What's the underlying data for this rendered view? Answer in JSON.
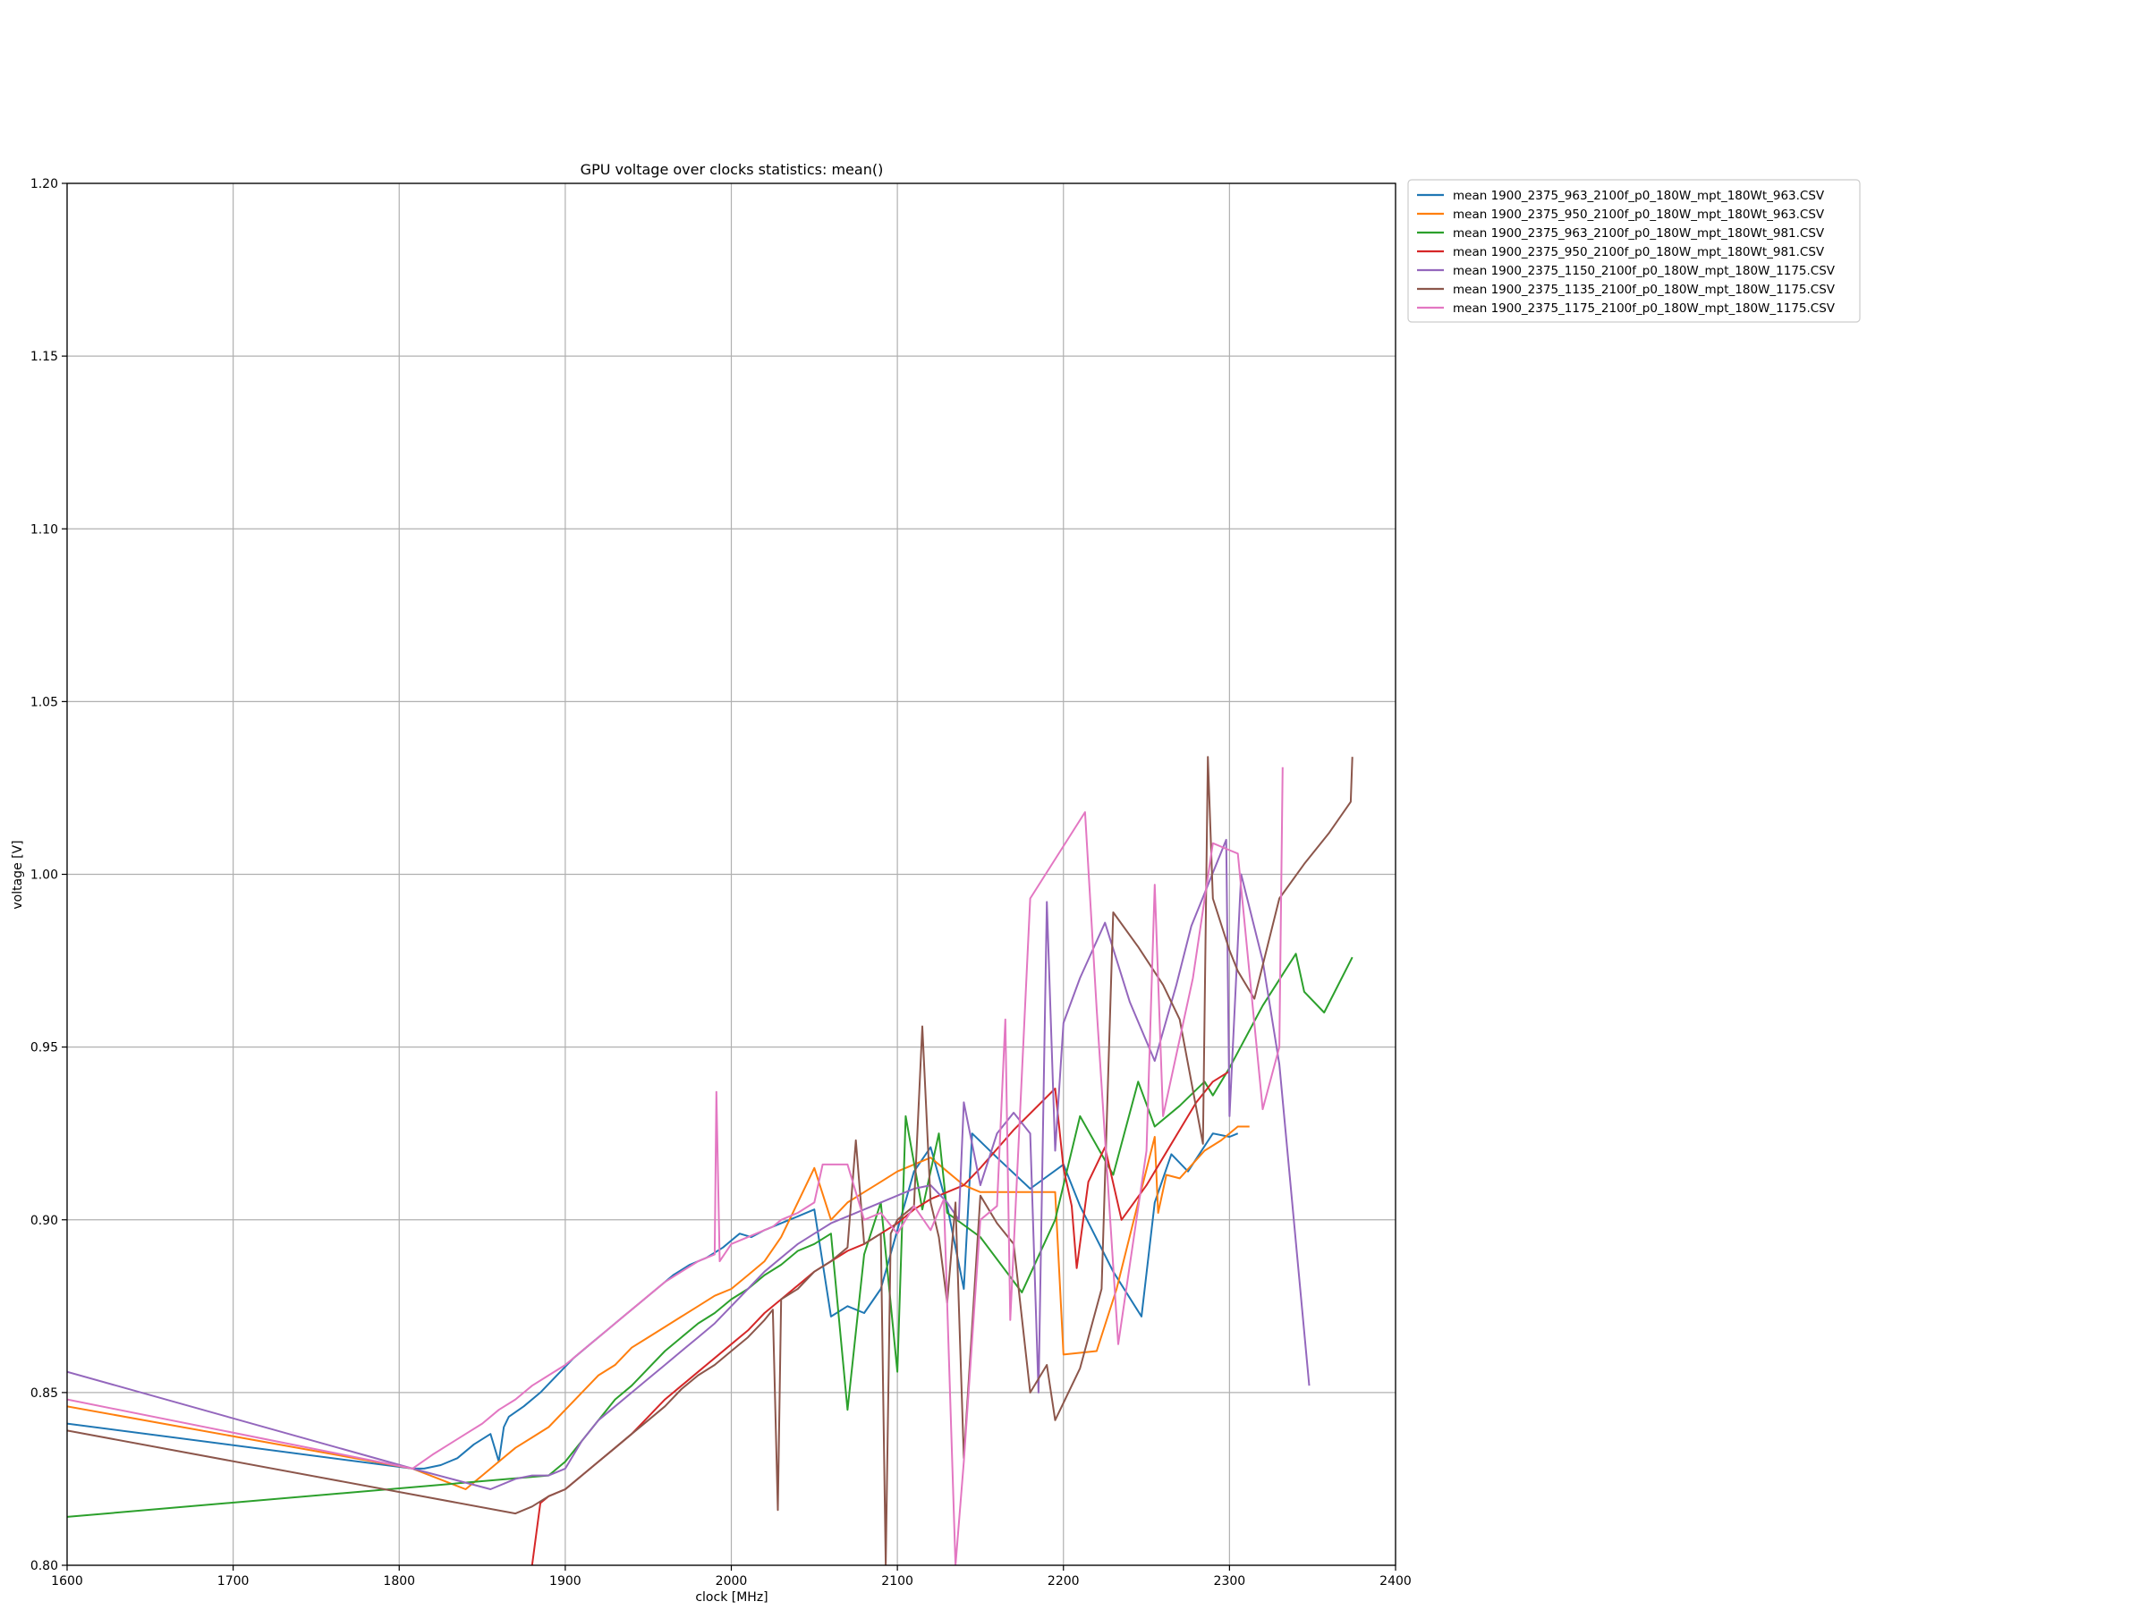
{
  "chart_data": {
    "type": "line",
    "title": "GPU voltage over clocks statistics: mean()",
    "xlabel": "clock [MHz]",
    "ylabel": "voltage [V]",
    "xlim": [
      1600,
      2400
    ],
    "ylim": [
      0.8,
      1.2
    ],
    "xticks": [
      1600,
      1700,
      1800,
      1900,
      2000,
      2100,
      2200,
      2300,
      2400
    ],
    "xtick_labels": [
      "1600",
      "1700",
      "1800",
      "1900",
      "2000",
      "2100",
      "2200",
      "2300",
      "2400"
    ],
    "yticks": [
      0.8,
      0.85,
      0.9,
      0.95,
      1.0,
      1.05,
      1.1,
      1.15,
      1.2
    ],
    "ytick_labels": [
      "0.80",
      "0.85",
      "0.90",
      "0.95",
      "1.00",
      "1.05",
      "1.10",
      "1.15",
      "1.20"
    ],
    "grid": true,
    "legend_position": "outside-top-right",
    "series": [
      {
        "name": "mean 1900_2375_963_2100f_p0_180W_mpt_180Wt_963.CSV",
        "color": "#1f77b4",
        "x": [
          1600,
          1808,
          1815,
          1825,
          1835,
          1845,
          1855,
          1860,
          1863,
          1866,
          1875,
          1885,
          1895,
          1905,
          1915,
          1925,
          1935,
          1945,
          1955,
          1965,
          1975,
          1985,
          1995,
          2000,
          2005,
          2012,
          2020,
          2030,
          2040,
          2050,
          2060,
          2070,
          2080,
          2090,
          2100,
          2110,
          2120,
          2130,
          2140,
          2145,
          2160,
          2180,
          2200,
          2210,
          2230,
          2247,
          2255,
          2265,
          2275,
          2290,
          2300,
          2305
        ],
        "y": [
          0.841,
          0.828,
          0.828,
          0.829,
          0.831,
          0.835,
          0.838,
          0.83,
          0.84,
          0.843,
          0.846,
          0.85,
          0.855,
          0.86,
          0.864,
          0.868,
          0.872,
          0.876,
          0.88,
          0.884,
          0.887,
          0.889,
          0.892,
          0.894,
          0.896,
          0.895,
          0.897,
          0.899,
          0.901,
          0.903,
          0.872,
          0.875,
          0.873,
          0.88,
          0.897,
          0.914,
          0.921,
          0.904,
          0.88,
          0.925,
          0.918,
          0.909,
          0.916,
          0.904,
          0.885,
          0.872,
          0.905,
          0.919,
          0.914,
          0.925,
          0.924,
          0.925
        ]
      },
      {
        "name": "mean 1900_2375_950_2100f_p0_180W_mpt_180Wt_963.CSV",
        "color": "#ff7f0e",
        "x": [
          1600,
          1808,
          1840,
          1850,
          1860,
          1870,
          1880,
          1890,
          1900,
          1910,
          1920,
          1930,
          1940,
          1950,
          1960,
          1970,
          1980,
          1990,
          2000,
          2010,
          2020,
          2030,
          2040,
          2050,
          2060,
          2070,
          2080,
          2090,
          2100,
          2110,
          2120,
          2130,
          2140,
          2150,
          2170,
          2195,
          2200,
          2220,
          2232,
          2245,
          2255,
          2257,
          2262,
          2270,
          2285,
          2295,
          2305,
          2312
        ],
        "y": [
          0.846,
          0.828,
          0.822,
          0.826,
          0.83,
          0.834,
          0.837,
          0.84,
          0.845,
          0.85,
          0.855,
          0.858,
          0.863,
          0.866,
          0.869,
          0.872,
          0.875,
          0.878,
          0.88,
          0.884,
          0.888,
          0.895,
          0.905,
          0.915,
          0.9,
          0.905,
          0.908,
          0.911,
          0.914,
          0.916,
          0.918,
          0.914,
          0.91,
          0.908,
          0.908,
          0.908,
          0.861,
          0.862,
          0.88,
          0.905,
          0.924,
          0.902,
          0.913,
          0.912,
          0.92,
          0.923,
          0.927,
          0.927
        ]
      },
      {
        "name": "mean 1900_2375_963_2100f_p0_180W_mpt_180Wt_981.CSV",
        "color": "#2ca02c",
        "x": [
          1600,
          1890,
          1900,
          1910,
          1920,
          1930,
          1940,
          1950,
          1960,
          1970,
          1980,
          1990,
          2000,
          2010,
          2020,
          2030,
          2040,
          2050,
          2060,
          2070,
          2080,
          2090,
          2100,
          2105,
          2115,
          2125,
          2130,
          2150,
          2175,
          2195,
          2210,
          2230,
          2245,
          2255,
          2270,
          2285,
          2290,
          2300,
          2320,
          2340,
          2345,
          2357,
          2374
        ],
        "y": [
          0.814,
          0.826,
          0.83,
          0.836,
          0.842,
          0.848,
          0.852,
          0.857,
          0.862,
          0.866,
          0.87,
          0.873,
          0.877,
          0.88,
          0.884,
          0.887,
          0.891,
          0.893,
          0.896,
          0.845,
          0.89,
          0.905,
          0.856,
          0.93,
          0.903,
          0.925,
          0.902,
          0.895,
          0.879,
          0.9,
          0.93,
          0.913,
          0.94,
          0.927,
          0.933,
          0.94,
          0.936,
          0.944,
          0.962,
          0.977,
          0.966,
          0.96,
          0.976
        ]
      },
      {
        "name": "mean 1900_2375_950_2100f_p0_180W_mpt_180Wt_981.CSV",
        "color": "#d62728",
        "x": [
          1880,
          1885,
          1890,
          1900,
          1910,
          1920,
          1930,
          1940,
          1950,
          1960,
          1970,
          1980,
          1990,
          2000,
          2010,
          2020,
          2030,
          2040,
          2050,
          2060,
          2070,
          2080,
          2090,
          2100,
          2110,
          2120,
          2130,
          2140,
          2150,
          2170,
          2195,
          2200,
          2205,
          2208,
          2215,
          2225,
          2235,
          2250,
          2265,
          2280,
          2290,
          2300
        ],
        "y": [
          0.8,
          0.818,
          0.82,
          0.822,
          0.826,
          0.83,
          0.834,
          0.838,
          0.843,
          0.848,
          0.852,
          0.856,
          0.86,
          0.864,
          0.868,
          0.873,
          0.877,
          0.881,
          0.885,
          0.888,
          0.891,
          0.893,
          0.896,
          0.899,
          0.903,
          0.906,
          0.908,
          0.91,
          0.915,
          0.926,
          0.938,
          0.915,
          0.904,
          0.886,
          0.911,
          0.921,
          0.9,
          0.91,
          0.922,
          0.934,
          0.94,
          0.943
        ]
      },
      {
        "name": "mean 1900_2375_1150_2100f_p0_180W_mpt_180W_1175.CSV",
        "color": "#9467bd",
        "x": [
          1600,
          1808,
          1855,
          1870,
          1880,
          1890,
          1900,
          1910,
          1920,
          1930,
          1940,
          1950,
          1960,
          1970,
          1980,
          1990,
          2000,
          2010,
          2020,
          2030,
          2040,
          2050,
          2060,
          2070,
          2080,
          2090,
          2100,
          2110,
          2120,
          2130,
          2137,
          2140,
          2150,
          2160,
          2170,
          2180,
          2185,
          2190,
          2195,
          2200,
          2210,
          2225,
          2240,
          2255,
          2268,
          2277,
          2298,
          2300,
          2307,
          2320,
          2330,
          2348
        ],
        "y": [
          0.856,
          0.828,
          0.822,
          0.825,
          0.826,
          0.826,
          0.828,
          0.836,
          0.842,
          0.846,
          0.85,
          0.854,
          0.858,
          0.862,
          0.866,
          0.87,
          0.875,
          0.88,
          0.885,
          0.889,
          0.893,
          0.896,
          0.899,
          0.901,
          0.903,
          0.905,
          0.907,
          0.909,
          0.91,
          0.905,
          0.9,
          0.934,
          0.91,
          0.925,
          0.931,
          0.925,
          0.85,
          0.992,
          0.92,
          0.957,
          0.97,
          0.986,
          0.963,
          0.946,
          0.968,
          0.985,
          1.01,
          0.93,
          1.0,
          0.975,
          0.945,
          0.852
        ]
      },
      {
        "name": "mean 1900_2375_1135_2100f_p0_180W_mpt_180W_1175.CSV",
        "color": "#8c564b",
        "x": [
          1600,
          1870,
          1880,
          1890,
          1900,
          1910,
          1920,
          1930,
          1940,
          1950,
          1960,
          1970,
          1980,
          1990,
          2000,
          2010,
          2020,
          2025,
          2028,
          2030,
          2040,
          2050,
          2060,
          2070,
          2075,
          2080,
          2090,
          2093,
          2096,
          2100,
          2110,
          2115,
          2120,
          2125,
          2130,
          2135,
          2140,
          2150,
          2160,
          2170,
          2180,
          2190,
          2195,
          2210,
          2223,
          2230,
          2245,
          2260,
          2270,
          2284,
          2287,
          2290,
          2300,
          2305,
          2315,
          2330,
          2345,
          2360,
          2373,
          2374
        ],
        "y": [
          0.839,
          0.815,
          0.817,
          0.82,
          0.822,
          0.826,
          0.83,
          0.834,
          0.838,
          0.842,
          0.846,
          0.851,
          0.855,
          0.858,
          0.862,
          0.866,
          0.871,
          0.874,
          0.816,
          0.877,
          0.88,
          0.885,
          0.888,
          0.892,
          0.923,
          0.893,
          0.896,
          0.8,
          0.896,
          0.9,
          0.904,
          0.956,
          0.905,
          0.895,
          0.876,
          0.905,
          0.831,
          0.907,
          0.899,
          0.893,
          0.85,
          0.858,
          0.842,
          0.857,
          0.88,
          0.989,
          0.979,
          0.968,
          0.958,
          0.922,
          1.034,
          0.993,
          0.978,
          0.972,
          0.964,
          0.993,
          1.003,
          1.012,
          1.021,
          1.034
        ]
      },
      {
        "name": "mean 1900_2375_1175_2100f_p0_180W_mpt_180W_1175.CSV",
        "color": "#e377c2",
        "x": [
          1600,
          1808,
          1820,
          1830,
          1840,
          1850,
          1860,
          1870,
          1880,
          1890,
          1900,
          1910,
          1920,
          1930,
          1940,
          1950,
          1960,
          1970,
          1980,
          1990,
          1991,
          1993,
          2000,
          2010,
          2020,
          2025,
          2030,
          2040,
          2050,
          2055,
          2060,
          2070,
          2080,
          2090,
          2100,
          2110,
          2120,
          2128,
          2135,
          2140,
          2150,
          2160,
          2165,
          2168,
          2180,
          2213,
          2220,
          2233,
          2250,
          2255,
          2260,
          2278,
          2290,
          2300,
          2305,
          2320,
          2330,
          2332
        ],
        "y": [
          0.848,
          0.828,
          0.832,
          0.835,
          0.838,
          0.841,
          0.845,
          0.848,
          0.852,
          0.855,
          0.858,
          0.862,
          0.866,
          0.87,
          0.874,
          0.878,
          0.882,
          0.885,
          0.888,
          0.89,
          0.937,
          0.888,
          0.893,
          0.895,
          0.897,
          0.898,
          0.9,
          0.902,
          0.905,
          0.916,
          0.916,
          0.916,
          0.9,
          0.902,
          0.896,
          0.904,
          0.897,
          0.906,
          0.8,
          0.83,
          0.9,
          0.904,
          0.958,
          0.871,
          0.993,
          1.018,
          0.961,
          0.864,
          0.92,
          0.997,
          0.93,
          0.97,
          1.009,
          1.007,
          1.006,
          0.932,
          0.95,
          1.031
        ]
      }
    ]
  }
}
